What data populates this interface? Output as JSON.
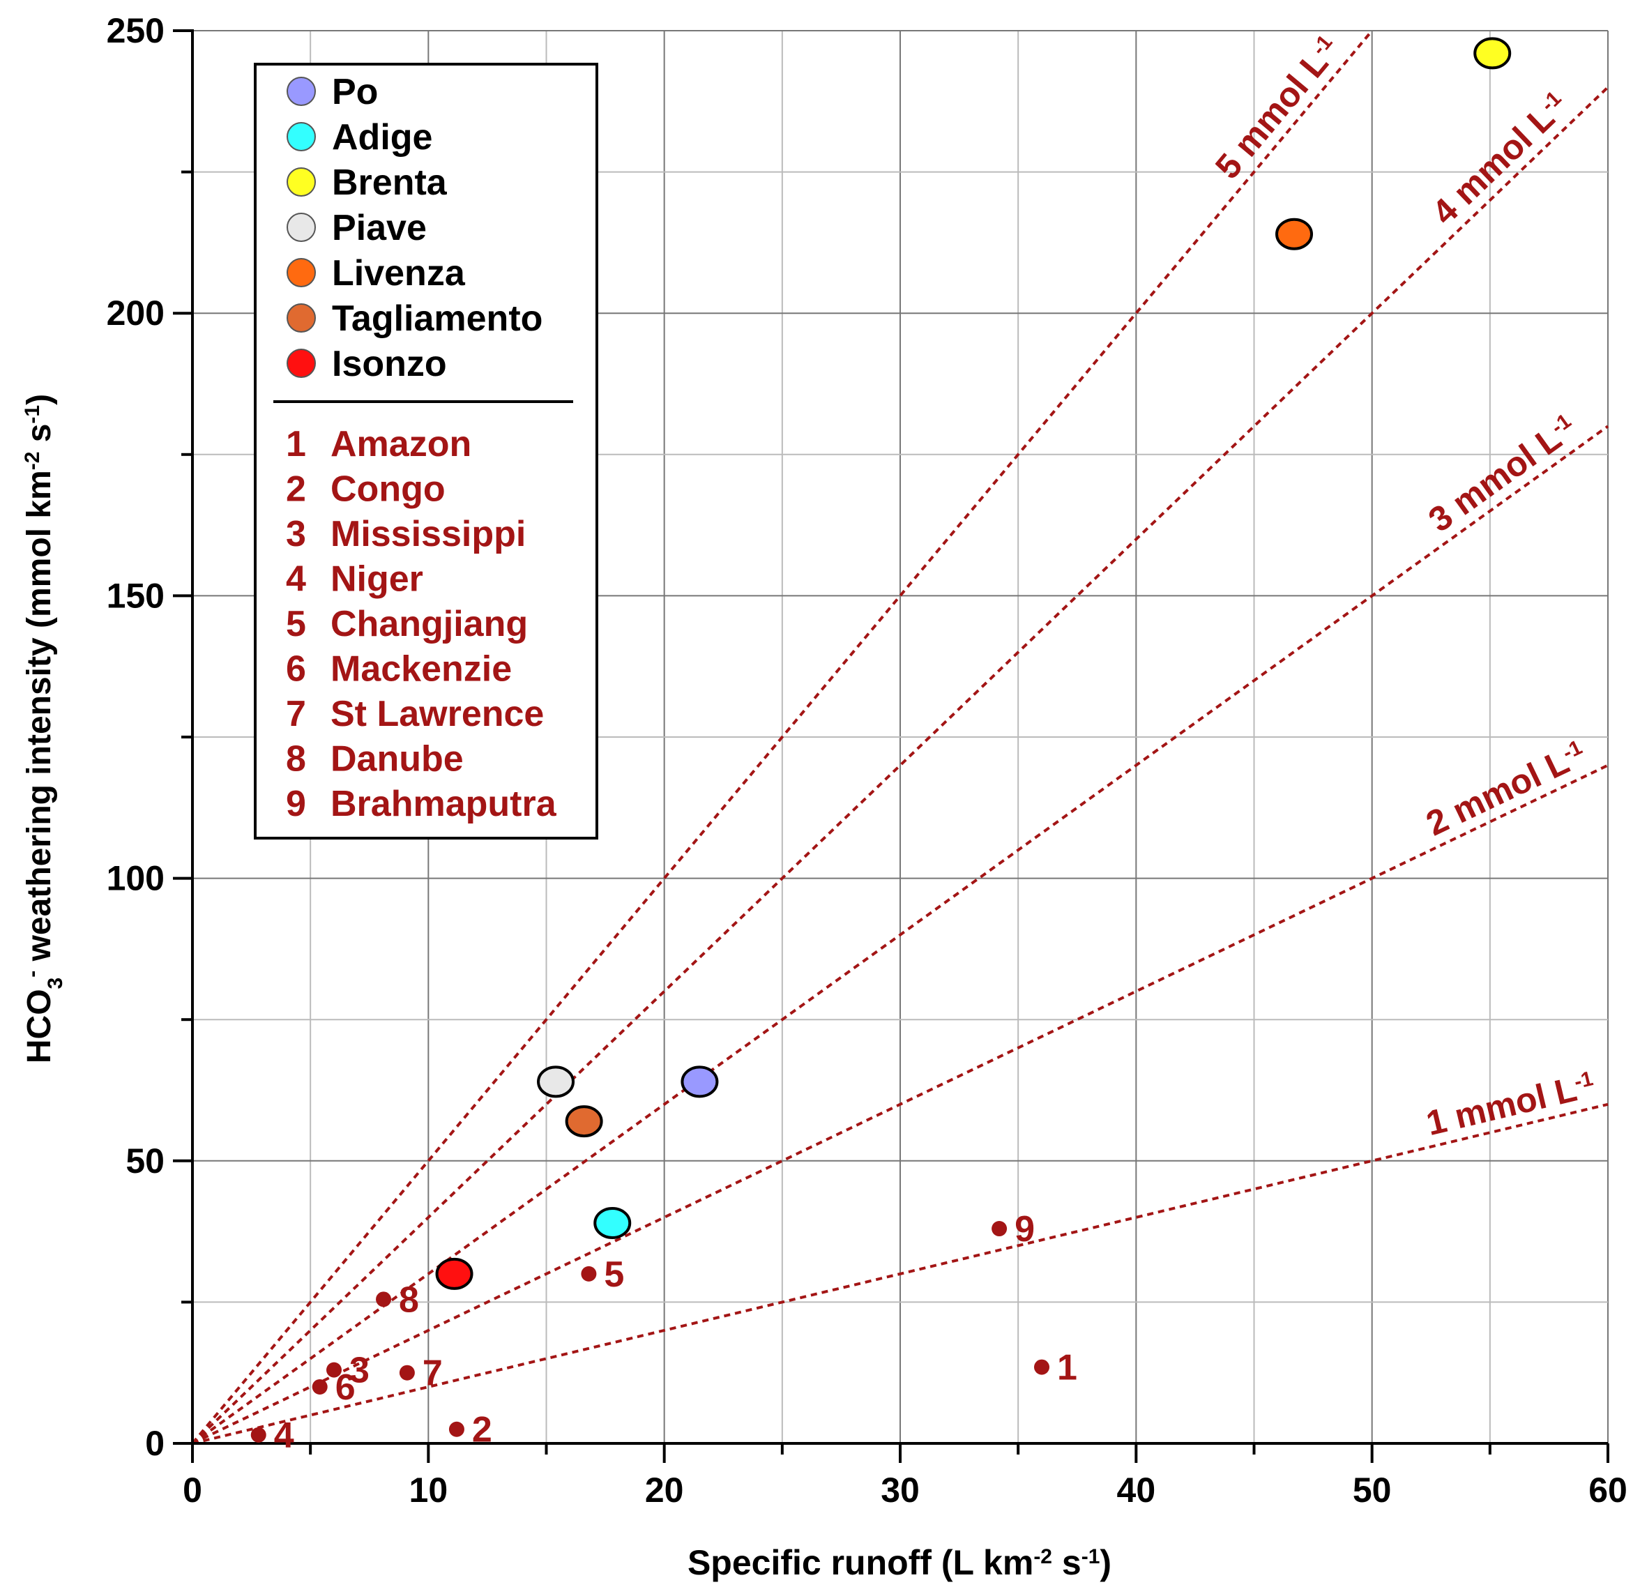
{
  "chart_data": {
    "type": "scatter",
    "xlabel": "Specific runoff (L km",
    "xlabel_sup1": "-2",
    "xlabel_mid": " s",
    "xlabel_sup2": "-1",
    "xlabel_end": ")",
    "ylabel_pre": "HCO",
    "ylabel_sub": "3",
    "ylabel_sup": "-",
    "ylabel_mid": " weathering intensity (mmol km",
    "ylabel_sup1": "-2",
    "ylabel_mid2": " s",
    "ylabel_sup2": "-1",
    "ylabel_end": ")",
    "xlim": [
      0,
      60
    ],
    "ylim": [
      0,
      250
    ],
    "x_ticks": [
      0,
      10,
      20,
      30,
      40,
      50,
      60
    ],
    "x_tick_labels": [
      "0",
      "10",
      "20",
      "30",
      "40",
      "50",
      "60"
    ],
    "x_minor_ticks": [
      5,
      15,
      25,
      35,
      45,
      55
    ],
    "y_ticks": [
      0,
      50,
      100,
      150,
      200,
      250
    ],
    "y_tick_labels": [
      "0",
      "50",
      "100",
      "150",
      "200",
      "250"
    ],
    "y_minor_ticks": [
      25,
      75,
      125,
      175,
      225
    ],
    "grid": true,
    "legend_position": "top-left",
    "accent_color": "#a31515",
    "concentration_lines": [
      {
        "slope": 1,
        "label": "1 mmol L",
        "label_sup": "-1"
      },
      {
        "slope": 2,
        "label": "2 mmol L",
        "label_sup": "-1"
      },
      {
        "slope": 3,
        "label": "3 mmol L",
        "label_sup": "-1"
      },
      {
        "slope": 4,
        "label": "4 mmol L",
        "label_sup": "-1"
      },
      {
        "slope": 5,
        "label": "5 mmol L",
        "label_sup": "-1"
      }
    ],
    "series": [
      {
        "name": "Po",
        "color": "#9999ff",
        "x": 21.5,
        "y": 64
      },
      {
        "name": "Adige",
        "color": "#33ffff",
        "x": 17.8,
        "y": 39
      },
      {
        "name": "Brenta",
        "color": "#ffff22",
        "x": 55.1,
        "y": 246
      },
      {
        "name": "Piave",
        "color": "#e8e8e8",
        "x": 15.4,
        "y": 64
      },
      {
        "name": "Livenza",
        "color": "#ff6a10",
        "x": 46.7,
        "y": 214
      },
      {
        "name": "Tagliamento",
        "color": "#e06a30",
        "x": 16.6,
        "y": 57
      },
      {
        "name": "Isonzo",
        "color": "#ff1010",
        "x": 11.1,
        "y": 30
      }
    ],
    "world_rivers": [
      {
        "id": "1",
        "name": "Amazon",
        "x": 36.0,
        "y": 13.5
      },
      {
        "id": "2",
        "name": "Congo",
        "x": 11.2,
        "y": 2.5
      },
      {
        "id": "3",
        "name": "Mississippi",
        "x": 6.0,
        "y": 13
      },
      {
        "id": "4",
        "name": "Niger",
        "x": 2.8,
        "y": 1.5
      },
      {
        "id": "5",
        "name": "Changjiang",
        "x": 16.8,
        "y": 30
      },
      {
        "id": "6",
        "name": "Mackenzie",
        "x": 5.4,
        "y": 10
      },
      {
        "id": "7",
        "name": "St Lawrence",
        "x": 9.1,
        "y": 12.5
      },
      {
        "id": "8",
        "name": "Danube",
        "x": 8.1,
        "y": 25.5
      },
      {
        "id": "9",
        "name": "Brahmaputra",
        "x": 34.2,
        "y": 38
      }
    ]
  }
}
